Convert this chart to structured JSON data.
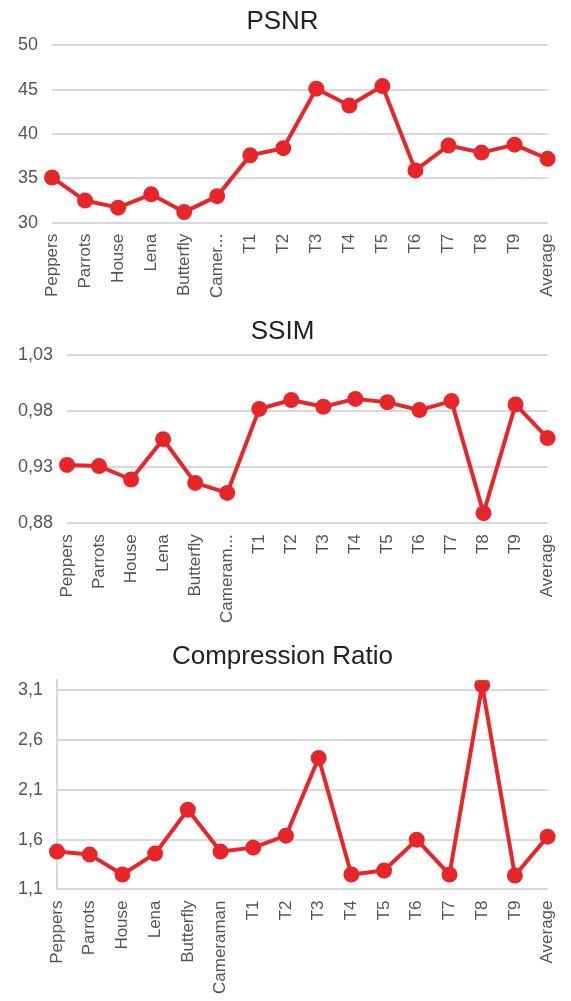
{
  "chart_data": [
    {
      "type": "line",
      "title": "PSNR",
      "categories": [
        "Peppers",
        "Parrots",
        "House",
        "Lena",
        "Butterfly",
        "Camer...",
        "T1",
        "T2",
        "T3",
        "T4",
        "T5",
        "T6",
        "T7",
        "T8",
        "T9",
        "Average"
      ],
      "series": [
        {
          "color": "#e8262a",
          "values": [
            35.1,
            32.5,
            31.7,
            33.2,
            31.2,
            33.0,
            37.6,
            38.4,
            45.1,
            43.2,
            45.4,
            35.9,
            38.7,
            37.9,
            38.8,
            37.2
          ]
        }
      ],
      "ylim": [
        30,
        50
      ],
      "yticks": [
        30,
        35,
        40,
        45,
        50
      ],
      "grid": "y",
      "marker": "circle",
      "line_style": "solid"
    },
    {
      "type": "line",
      "title": "SSIM",
      "categories": [
        "Peppers",
        "Parrots",
        "House",
        "Lena",
        "Butterfly",
        "Cameram...",
        "T1",
        "T2",
        "T3",
        "T4",
        "T5",
        "T6",
        "T7",
        "T8",
        "T9",
        "Average"
      ],
      "series": [
        {
          "color": "#e8262a",
          "values": [
            0.932,
            0.931,
            0.919,
            0.955,
            0.916,
            0.907,
            0.982,
            0.99,
            0.984,
            0.991,
            0.988,
            0.981,
            0.989,
            0.889,
            0.986,
            0.956
          ]
        }
      ],
      "ylim": [
        0.88,
        1.03
      ],
      "yticks": [
        {
          "value": 0.88,
          "label": "0,88"
        },
        {
          "value": 0.93,
          "label": "0,93"
        },
        {
          "value": 0.98,
          "label": "0,98"
        },
        {
          "value": 1.03,
          "label": "1,03"
        }
      ],
      "grid": "y",
      "marker": "circle",
      "line_style": "solid"
    },
    {
      "type": "line",
      "title": "Compression Ratio",
      "categories": [
        "Peppers",
        "Parrots",
        "House",
        "Lena",
        "Butterfly",
        "Cameraman",
        "T1",
        "T2",
        "T3",
        "T4",
        "T5",
        "T6",
        "T7",
        "T8",
        "T9",
        "Average"
      ],
      "series": [
        {
          "color": "#e8262a",
          "values": [
            1.48,
            1.45,
            1.25,
            1.46,
            1.9,
            1.48,
            1.52,
            1.64,
            2.42,
            1.25,
            1.29,
            1.6,
            1.25,
            3.15,
            1.24,
            1.63
          ]
        }
      ],
      "ylim": [
        1.1,
        3.2
      ],
      "yticks": [
        {
          "value": 1.1,
          "label": "1,1"
        },
        {
          "value": 1.6,
          "label": "1,6"
        },
        {
          "value": 2.1,
          "label": "2,1"
        },
        {
          "value": 2.6,
          "label": "2,6"
        },
        {
          "value": 3.1,
          "label": "3,1"
        }
      ],
      "grid": "y",
      "marker": "circle",
      "line_style": "solid"
    }
  ]
}
